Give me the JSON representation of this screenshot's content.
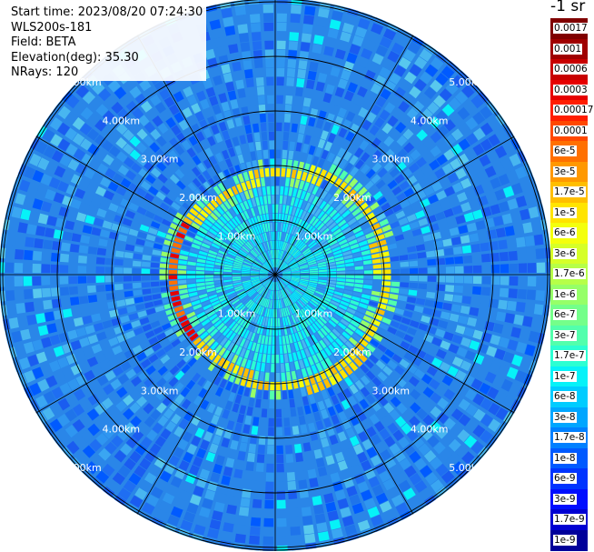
{
  "header": {
    "start_time": "Start time: 2023/08/20 07:24:30",
    "instrument": "WLS200s-181",
    "field": "Field: BETA",
    "elevation": "Elevation(deg): 35.30",
    "nrays": "NRays: 120"
  },
  "colorbar": {
    "unit": "-1 sr",
    "labels": [
      "0.0017",
      "0.001",
      "0.0006",
      "0.0003",
      "0.00017",
      "0.0001",
      "6e-5",
      "3e-5",
      "1.7e-5",
      "1e-5",
      "6e-6",
      "3e-6",
      "1.7e-6",
      "1e-6",
      "6e-7",
      "3e-7",
      "1.7e-7",
      "1e-7",
      "6e-8",
      "3e-8",
      "1.7e-8",
      "1e-8",
      "6e-9",
      "3e-9",
      "1.7e-9",
      "1e-9"
    ],
    "colors": [
      "#800000",
      "#a00000",
      "#c80000",
      "#e60000",
      "#ff1e00",
      "#ff4800",
      "#ff7000",
      "#ff9800",
      "#ffbe00",
      "#ffe400",
      "#f4ff0c",
      "#d6ff28",
      "#b6ff48",
      "#96ff68",
      "#74ff8a",
      "#52ffac",
      "#2cffd2",
      "#06f2f8",
      "#00ccff",
      "#00a6ff",
      "#0080ff",
      "#005aff",
      "#0034ff",
      "#000eff",
      "#0000d2",
      "#00009a"
    ]
  },
  "range_rings": {
    "labels": [
      "1.00km",
      "2.00km",
      "3.00km",
      "4.00km",
      "5.00km"
    ]
  },
  "colors": {
    "background": "#2a86e8",
    "ring": "#000000",
    "text": "#ffffff"
  }
}
